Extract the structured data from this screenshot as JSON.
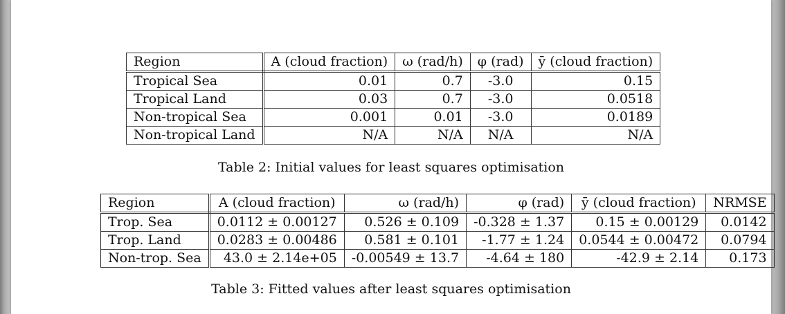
{
  "table2": {
    "headers": [
      "Region",
      "A (cloud fraction)",
      "ω (rad/h)",
      "φ (rad)",
      "ȳ (cloud fraction)"
    ],
    "rows": [
      [
        "Tropical Sea",
        "0.01",
        "0.7",
        "-3.0",
        "0.15"
      ],
      [
        "Tropical Land",
        "0.03",
        "0.7",
        "-3.0",
        "0.0518"
      ],
      [
        "Non-tropical Sea",
        "0.001",
        "0.01",
        "-3.0",
        "0.0189"
      ],
      [
        "Non-tropical Land",
        "N/A",
        "N/A",
        "N/A",
        "N/A"
      ]
    ],
    "caption": "Table 2: Initial values for least squares optimisation"
  },
  "table3": {
    "headers": [
      "Region",
      "A (cloud fraction)",
      "ω (rad/h)",
      "φ (rad)",
      "ȳ (cloud fraction)",
      "NRMSE"
    ],
    "rows": [
      [
        "Trop. Sea",
        "0.0112 ± 0.00127",
        "0.526 ± 0.109",
        "-0.328 ± 1.37",
        "0.15 ± 0.00129",
        "0.0142"
      ],
      [
        "Trop. Land",
        "0.0283 ± 0.00486",
        "0.581 ± 0.101",
        "-1.77 ± 1.24",
        "0.0544 ± 0.00472",
        "0.0794"
      ],
      [
        "Non-trop. Sea",
        "43.0 ± 2.14e+05",
        "-0.00549 ± 13.7",
        "-4.64 ± 180",
        "-42.9 ± 2.14",
        "0.173"
      ]
    ],
    "caption": "Table 3: Fitted values after least squares optimisation"
  }
}
